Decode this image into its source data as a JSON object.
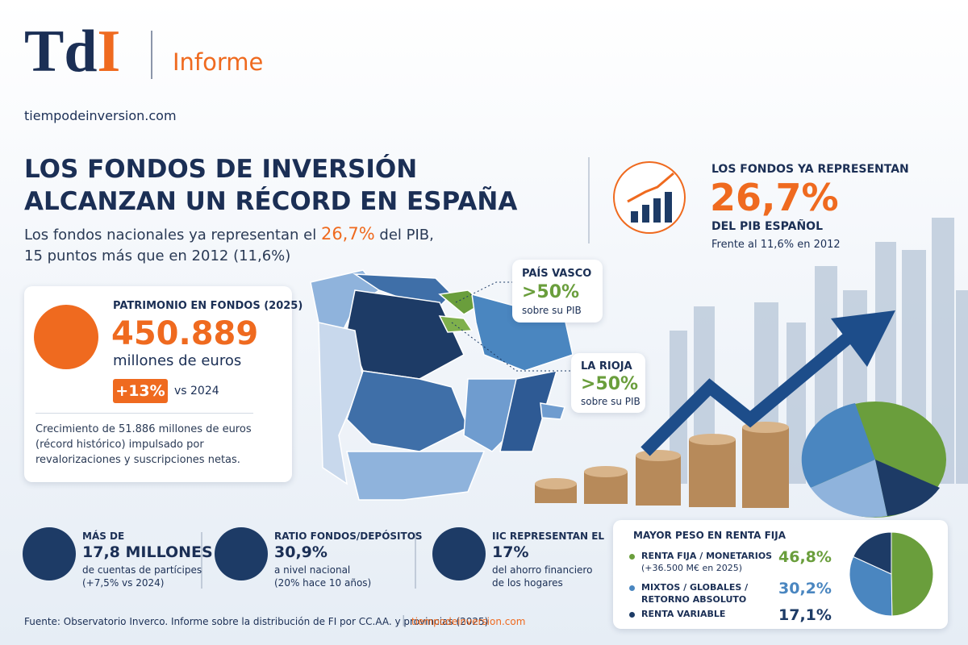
{
  "header": {
    "logo_main": "Td",
    "logo_accent": "I",
    "tag": "Informe",
    "site": "tiempodeinversion.com"
  },
  "headline": {
    "title": [
      "LOS FONDOS DE INVERSIÓN",
      "ALCANZAN UN RÉCORD EN ESPAÑA"
    ],
    "subtitle_before": "Los fondos nacionales ya representan el ",
    "subtitle_highlight": "26,7%",
    "subtitle_after": " del PIB,",
    "subtitle_line2": "15 puntos más que en 2012 (11,6%)"
  },
  "highlight": {
    "label": "LOS FONDOS YA REPRESENTAN",
    "value": "26,7%",
    "unit": "DEL PIB ESPAÑOL",
    "note": "Frente al 11,6% en 2012"
  },
  "assets": {
    "label": "PATRIMONIO EN FONDOS (2025)",
    "value": "450.889",
    "unit": "millones de euros",
    "badge": "+13%",
    "badge_note": "vs 2024",
    "description": [
      "Crecimiento de 51.886 millones de euros",
      "(récord histórico) impulsado por",
      "revalorizaciones y suscripciones netas."
    ]
  },
  "callouts": [
    {
      "region": "PAÍS VASCO",
      "value": ">50%",
      "note": "sobre su PIB"
    },
    {
      "region": "LA RIOJA",
      "value": ">50%",
      "note": "sobre su PIB"
    }
  ],
  "stats": [
    {
      "label": "MÁS DE",
      "value": "17,8 MILLONES",
      "notes": [
        "de cuentas de partícipes",
        "(+7,5% vs 2024)"
      ]
    },
    {
      "label": "RATIO FONDOS/DEPÓSITOS",
      "value": "30,9%",
      "notes": [
        "a nivel nacional",
        "(20% hace 10 años)"
      ]
    },
    {
      "label": "IIC REPRESENTAN EL",
      "value": "17%",
      "notes": [
        "del ahorro financiero",
        "de los hogares"
      ]
    }
  ],
  "breakdown": {
    "title": "MAYOR PESO EN RENTA FIJA",
    "items": [
      {
        "name": [
          "RENTA FIJA / MONETARIOS"
        ],
        "note": "(+36.500 M€ en 2025)",
        "value": {
          "value": 46.8,
          "label": "46,8%"
        },
        "color": "#6a9e3c"
      },
      {
        "name": [
          "MIXTOS / GLOBALES /",
          "RETORNO ABSOLUTO"
        ],
        "value": {
          "value": 30.2,
          "label": "30,2%"
        },
        "color": "#4a86c0"
      },
      {
        "name": [
          "RENTA VARIABLE"
        ],
        "value": {
          "value": 17.1,
          "label": "17,1%"
        },
        "color": "#1d3b66"
      }
    ]
  },
  "footer": {
    "source": "Fuente: Observatorio Inverco. Informe sobre la distribución de FI por CC.AA. y provincias (2025)",
    "site": "tiempodeinversion.com"
  }
}
